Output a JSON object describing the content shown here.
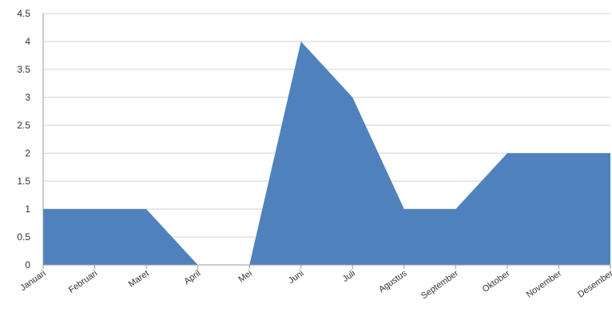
{
  "chart_data": {
    "type": "area",
    "title": "",
    "xlabel": "",
    "ylabel": "",
    "categories": [
      "Januari",
      "Februari",
      "Maret",
      "April",
      "Mei",
      "Juni",
      "Juli",
      "Agustus",
      "September",
      "Oktober",
      "November",
      "Desember"
    ],
    "series": [
      {
        "values": [
          1,
          1,
          1,
          0,
          0,
          4,
          3,
          1,
          1,
          2,
          2,
          2
        ],
        "color": "#4f81bd"
      }
    ],
    "ylim": [
      0,
      4.5
    ],
    "yticks": [
      "0",
      "0.5",
      "1",
      "1.5",
      "2",
      "2.5",
      "3",
      "3.5",
      "4",
      "4.5"
    ],
    "grid": true,
    "legend": "none"
  }
}
